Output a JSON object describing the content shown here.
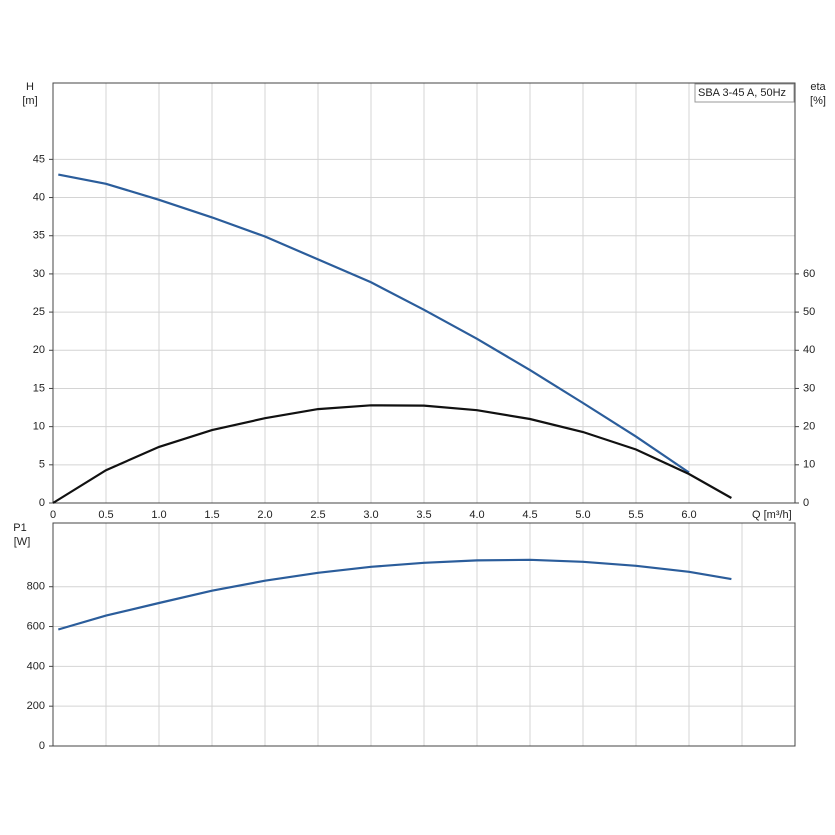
{
  "chart_data": [
    {
      "type": "line",
      "annotation": "SBA 3-45 A, 50Hz",
      "ylabel": "H",
      "yunit": "[m]",
      "y2label": "eta",
      "y2unit": "[%]",
      "xlabel": "Q [m³/h]",
      "xlim": [
        0,
        7
      ],
      "xticks": [
        0,
        0.5,
        {
          "value": 1,
          "label": "1.0"
        },
        1.5,
        {
          "value": 2,
          "label": "2.0"
        },
        2.5,
        {
          "value": 3,
          "label": "3.0"
        },
        3.5,
        {
          "value": 4,
          "label": "4.0"
        },
        4.5,
        {
          "value": 5,
          "label": "5.0"
        },
        5.5,
        {
          "value": 6,
          "label": "6.0"
        }
      ],
      "ylim": [
        0,
        55
      ],
      "yticks": [
        0,
        5,
        10,
        15,
        20,
        25,
        30,
        35,
        40,
        45
      ],
      "y2lim": [
        0,
        110
      ],
      "y2ticks": [
        0,
        10,
        20,
        30,
        40,
        50,
        60
      ],
      "grid": true,
      "series": [
        {
          "color": "#2b5d9b",
          "x": [
            0.05,
            0.5,
            1.0,
            1.5,
            2.0,
            2.5,
            3.0,
            3.5,
            4.0,
            4.5,
            5.0,
            5.5,
            6.0
          ],
          "values": [
            43,
            41.8,
            39.7,
            37.4,
            34.9,
            31.9,
            28.9,
            25.3,
            21.5,
            17.4,
            13.1,
            8.7,
            4.0
          ]
        },
        {
          "color": "#111111",
          "axis": "y2",
          "x": [
            0,
            0.5,
            1.0,
            1.5,
            2.0,
            2.5,
            3.0,
            3.5,
            4.0,
            4.5,
            5.0,
            5.5,
            6.0,
            6.4
          ],
          "values": [
            0,
            8.6,
            14.7,
            19.1,
            22.2,
            24.6,
            25.6,
            25.5,
            24.3,
            22,
            18.6,
            14,
            7.6,
            1.3
          ]
        }
      ]
    },
    {
      "type": "line",
      "ylabel": "P1",
      "yunit": "[W]",
      "xlim": [
        0,
        7
      ],
      "ylim": [
        0,
        1120
      ],
      "yticks": [
        0,
        200,
        400,
        600,
        800
      ],
      "grid": true,
      "xgrid": [
        0,
        0.5,
        1,
        1.5,
        2,
        2.5,
        3,
        3.5,
        4,
        4.5,
        5,
        5.5,
        6,
        6.5
      ],
      "series": [
        {
          "color": "#2b5d9b",
          "x": [
            0.05,
            0.5,
            1.0,
            1.5,
            2.0,
            2.5,
            3.0,
            3.5,
            4.0,
            4.5,
            5.0,
            5.5,
            6.0,
            6.4
          ],
          "values": [
            585,
            655,
            718,
            780,
            830,
            870,
            900,
            920,
            932,
            935,
            925,
            905,
            875,
            838
          ]
        }
      ]
    }
  ]
}
